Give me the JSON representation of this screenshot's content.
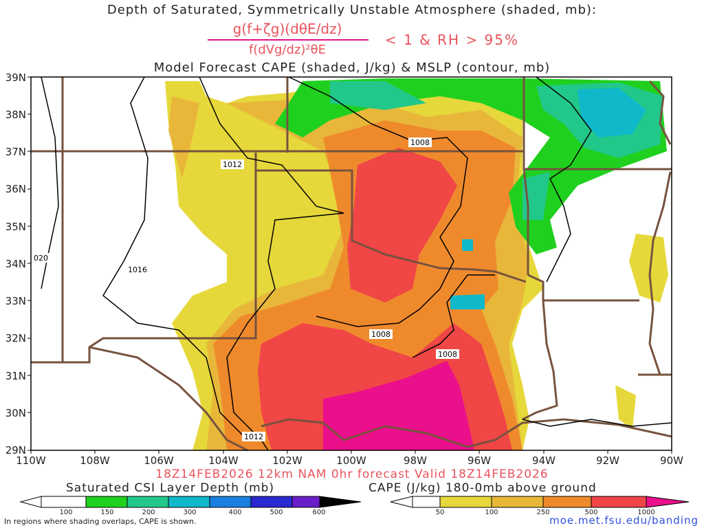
{
  "title": {
    "line1": "Depth of Saturated, Symmetrically Unstable Atmosphere (shaded, mb):",
    "formula_numerator": "g(f+ζg)(dθE/dz)",
    "formula_denominator": "f(dVg/dz)²θE",
    "formula_condition": "< 1 & RH > 95%",
    "line3": "Model Forecast CAPE (shaded, J/kg) & MSLP (contour, mb)"
  },
  "map": {
    "lat_labels": [
      "39N",
      "38N",
      "37N",
      "36N",
      "35N",
      "34N",
      "33N",
      "32N",
      "31N",
      "30N",
      "29N"
    ],
    "lon_labels": [
      "110W",
      "108W",
      "106W",
      "104W",
      "102W",
      "100W",
      "98W",
      "96W",
      "94W",
      "92W",
      "90W"
    ],
    "isobar_labels": [
      "1008",
      "1012",
      "1016",
      "020",
      "1008",
      "1008",
      "1012"
    ],
    "colors": {
      "cape_50": "#e6d83a",
      "cape_100": "#e8b73a",
      "cape_250": "#ef8a2c",
      "cape_500": "#f04646",
      "cape_1000": "#ea0f8a",
      "csi_100": "#1fd01f",
      "csi_150": "#22c88a",
      "csi_200": "#10b9c9",
      "border": "#76523e",
      "contour": "#000000"
    }
  },
  "valid_line": "18Z14FEB2026 12km NAM 0hr forecast Valid 18Z14FEB2026",
  "colorbar_csi": {
    "title": "Saturated CSI Layer Depth (mb)",
    "ticks": [
      "100",
      "150",
      "200",
      "300",
      "400",
      "500",
      "600"
    ]
  },
  "colorbar_cape": {
    "title": "CAPE (J/kg) 180-0mb above ground",
    "ticks": [
      "50",
      "100",
      "250",
      "500",
      "1000"
    ]
  },
  "footer_note": "In regions where shading overlaps, CAPE is shown.",
  "footer_url": "moe.met.fsu.edu/banding"
}
